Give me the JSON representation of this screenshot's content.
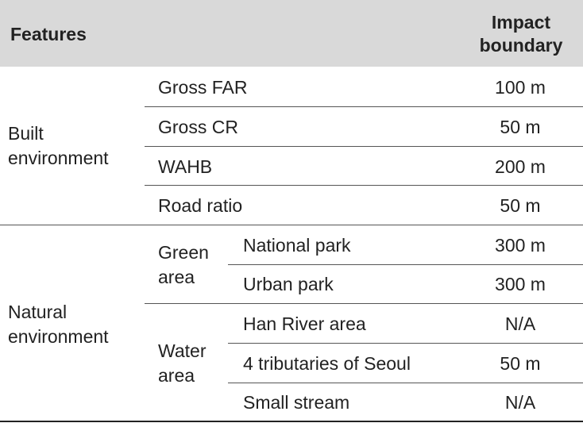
{
  "header": {
    "features": "Features",
    "impact_line1": "Impact",
    "impact_line2": "boundary"
  },
  "built": {
    "label_line1": "Built",
    "label_line2": "environment",
    "rows": [
      {
        "feature": "Gross FAR",
        "value": "100 m"
      },
      {
        "feature": "Gross CR",
        "value": "50 m"
      },
      {
        "feature": "WAHB",
        "value": "200 m"
      },
      {
        "feature": "Road ratio",
        "value": "50 m"
      }
    ]
  },
  "natural": {
    "label_line1": "Natural",
    "label_line2": "environment",
    "green": {
      "label_line1": "Green",
      "label_line2": "area",
      "rows": [
        {
          "feature": "National park",
          "value": "300 m"
        },
        {
          "feature": "Urban park",
          "value": "300 m"
        }
      ]
    },
    "water": {
      "label_line1": "Water",
      "label_line2": "area",
      "rows": [
        {
          "feature": "Han River area",
          "value": "N/A"
        },
        {
          "feature": "4 tributaries of Seoul",
          "value": "50 m"
        },
        {
          "feature": "Small stream",
          "value": "N/A"
        }
      ]
    }
  }
}
